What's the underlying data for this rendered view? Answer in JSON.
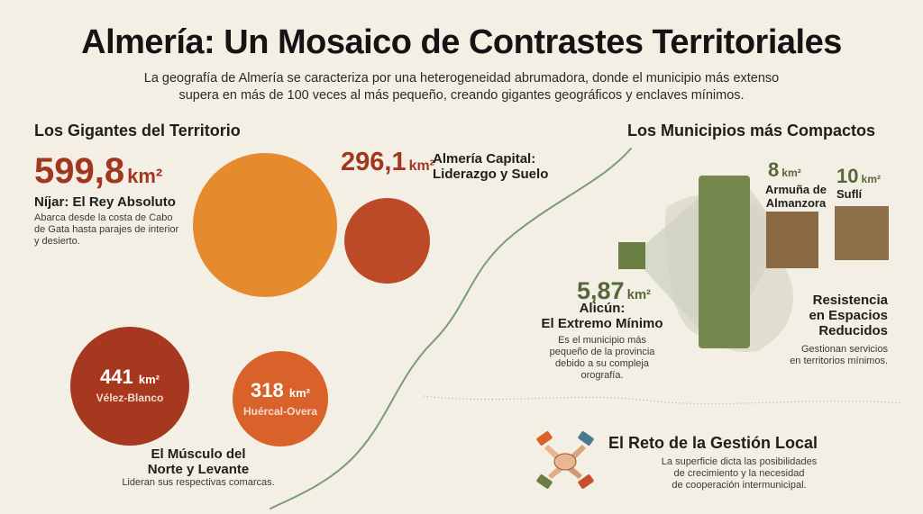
{
  "title": "Almería: Un Mosaico de Contrastes Territoriales",
  "subtitle": {
    "line1": "La geografía de Almería se caracteriza por una heterogeneidad abrumadora, donde el municipio más extenso",
    "line2": "supera en más de 100 veces al más pequeño, creando gigantes geográficos y enclaves mínimos."
  },
  "giants": {
    "heading": "Los Gigantes del Territorio",
    "nijar": {
      "value": "599,8",
      "unit": "km²",
      "name": "Níjar: El Rey Absoluto",
      "desc_lines": [
        "Abarca desde la costa de Cabo",
        "de Gata hasta parajes de interior",
        "y desierto."
      ]
    },
    "capital": {
      "value": "296,1",
      "unit": "km²",
      "name_line1": "Almería Capital:",
      "name_line2": "Liderazgo y Suelo"
    },
    "velez": {
      "value": "441",
      "unit": "km²",
      "name": "Vélez-Blanco"
    },
    "huercal": {
      "value": "318",
      "unit": "km²",
      "name": "Huércal-Overa"
    },
    "muscle": {
      "name_line1": "El Músculo del",
      "name_line2": "Norte y Levante",
      "desc": "Lideran sus respectivas comarcas."
    }
  },
  "compact": {
    "heading": "Los Municipios más Compactos",
    "armuna": {
      "value": "8",
      "unit": "km²",
      "name_line1": "Armuña de",
      "name_line2": "Almanzora"
    },
    "sufli": {
      "value": "10",
      "unit": "km²",
      "name": "Suflí"
    },
    "alicun": {
      "value": "5,87",
      "unit": "km²",
      "name_line1": "Alicún:",
      "name_line2": "El Extremo Mínimo",
      "desc_lines": [
        "Es el municipio más",
        "pequeño de la provincia",
        "debido a su compleja",
        "orografía."
      ]
    },
    "resistencia": {
      "name_lines": [
        "Resistencia",
        "en Espacios",
        "Reducidos"
      ],
      "desc_lines": [
        "Gestionan servicios",
        "en territorios mínimos."
      ]
    }
  },
  "challenge": {
    "heading": "El Reto de la Gestión Local",
    "desc_lines": [
      "La superficie dicta las posibilidades",
      "de crecimiento y la necesidad",
      "de cooperación intermunicipal."
    ],
    "icon": "hands-cooperation-icon"
  },
  "colors": {
    "background": "#f3efe4",
    "nijar_circle": "#e68a2e",
    "capital_circle": "#bd4a26",
    "velez_circle": "#a6381f",
    "huercal_circle": "#d9612a",
    "accent_red": "#a2361f",
    "map_green": "#75894f",
    "compact_brown": "#8a6a45",
    "path_green": "#6e8a6a"
  }
}
